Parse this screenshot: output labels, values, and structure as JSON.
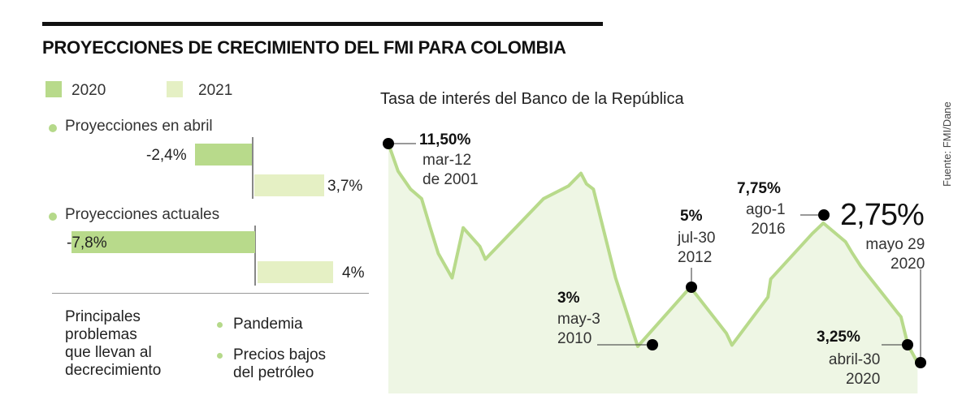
{
  "title": "PROYECCIONES DE CRECIMIENTO DEL FMI PARA COLOMBIA",
  "source": "Fuente: FMI/Dane",
  "colors": {
    "series_2020": "#b8da8b",
    "series_2021": "#e5f0c4",
    "line": "#b8da8b",
    "area": "#eef6e4",
    "marker": "#000000"
  },
  "chart_data": [
    {
      "type": "bar",
      "orientation": "horizontal",
      "legend": [
        "2020",
        "2021"
      ],
      "groups": [
        {
          "label": "Proyecciones en abril",
          "values": [
            -2.4,
            3.7
          ],
          "labels": [
            "-2,4%",
            "3,7%"
          ]
        },
        {
          "label": "Proyecciones actuales",
          "values": [
            -7.8,
            4.0
          ],
          "labels": [
            "-7,8%",
            "4%"
          ]
        }
      ]
    },
    {
      "type": "area",
      "title": "Tasa de interés del Banco de la República",
      "x": [
        2001.2,
        2001.55,
        2002.0,
        2002.4,
        2002.7,
        2003.0,
        2003.5,
        2003.9,
        2004.5,
        2004.7,
        2006.8,
        2007.7,
        2008.15,
        2008.35,
        2008.6,
        2009.4,
        2010.2,
        2012.1,
        2013.4,
        2013.6,
        2014.9,
        2015.0,
        2016.5,
        2016.9,
        2017.7,
        2017.95,
        2018.25,
        2019.6,
        2019.7,
        2019.95,
        2020.3
      ],
      "y": [
        11.5,
        10.2,
        9.35,
        8.9,
        7.6,
        6.45,
        5.4,
        7.55,
        6.75,
        6.2,
        8.9,
        9.5,
        10.1,
        9.6,
        9.35,
        5.4,
        3.0,
        5.0,
        3.6,
        3.2,
        4.7,
        5.35,
        7.3,
        7.75,
        6.95,
        6.45,
        5.9,
        4.2,
        4.1,
        3.25,
        2.75
      ],
      "annotations": [
        {
          "value": "11,50%",
          "date": [
            "mar-12",
            "de 2001"
          ]
        },
        {
          "value": "3%",
          "date": [
            "may-3",
            "2010"
          ]
        },
        {
          "value": "5%",
          "date": [
            "jul-30",
            "2012"
          ]
        },
        {
          "value": "7,75%",
          "date": [
            "ago-1",
            "2016"
          ]
        },
        {
          "value": "2,75%",
          "date": [
            "mayo 29",
            "2020"
          ]
        },
        {
          "value": "3,25%",
          "date": [
            "abril-30",
            "2020"
          ]
        }
      ]
    }
  ],
  "problems": {
    "heading": [
      "Principales",
      "problemas",
      "que llevan al",
      "decrecimiento"
    ],
    "items": [
      [
        "Pandemia"
      ],
      [
        "Precios bajos",
        "del petróleo"
      ]
    ]
  }
}
